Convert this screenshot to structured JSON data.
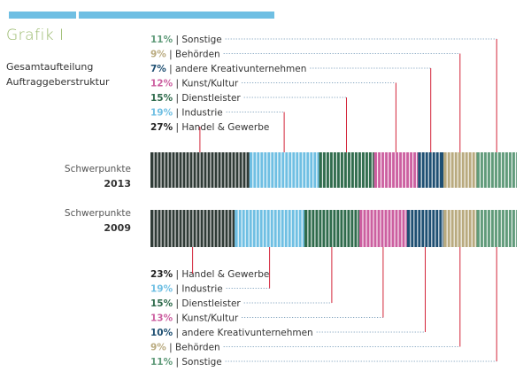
{
  "header": {
    "title": "Grafik I",
    "subtitle_line1": "Gesamtaufteilung",
    "subtitle_line2": "Auftraggeberstruktur"
  },
  "rows": {
    "top_label": "Schwerpunkte",
    "top_year": "2013",
    "bottom_label": "Schwerpunkte",
    "bottom_year": "2009"
  },
  "chart_data": {
    "type": "bar",
    "orientation": "stacked-horizontal",
    "categories": [
      "Handel & Gewerbe",
      "Industrie",
      "Dienstleister",
      "Kunst/Kultur",
      "andere Kreativunternehmen",
      "Behörden",
      "Sonstige"
    ],
    "colors": [
      "#2f3b36",
      "#6fbfe3",
      "#2f6b4c",
      "#cc5fa0",
      "#1e4f72",
      "#b9aa7e",
      "#5f9a79"
    ],
    "series": [
      {
        "name": "2013",
        "values": [
          27,
          19,
          15,
          12,
          7,
          9,
          11
        ]
      },
      {
        "name": "2009",
        "values": [
          23,
          19,
          15,
          13,
          10,
          9,
          11
        ]
      }
    ],
    "unit": "%"
  }
}
